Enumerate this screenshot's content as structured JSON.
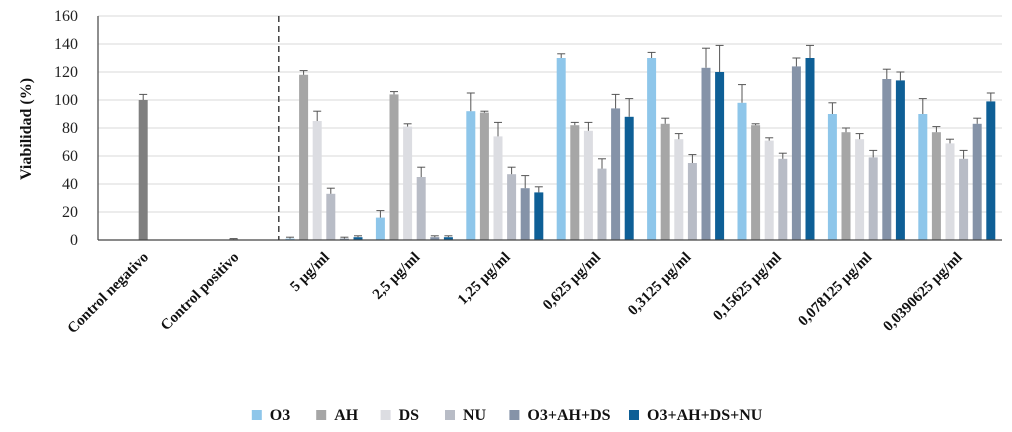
{
  "chart_data": {
    "type": "bar",
    "title": "",
    "xlabel": "",
    "ylabel": "Viabilidad (%)",
    "ylim": [
      0,
      160
    ],
    "yticks": [
      "0",
      "20",
      "40",
      "60",
      "80",
      "100",
      "120",
      "140",
      "160"
    ],
    "grid": true,
    "legend_position": "bottom",
    "categories": [
      "Control negativo",
      "Control positivo",
      "5 µg/ml",
      "2,5 µg/ml",
      "1,25 µg/ml",
      "0,625 µg/ml",
      "0,3125 µg/ml",
      "0,15625 µg/ml",
      "0,078125 µg/ml",
      "0,0390625 µg/ml"
    ],
    "control_values": [
      {
        "category": "Control negativo",
        "value": 100,
        "error": 4
      },
      {
        "category": "Control positivo",
        "value": 0.5,
        "error": 0.5
      }
    ],
    "series": [
      {
        "name": "O3",
        "color": "#8ec6ea",
        "values": [
          null,
          null,
          1,
          16,
          92,
          130,
          130,
          98,
          90,
          90
        ],
        "errors": [
          null,
          null,
          1,
          5,
          13,
          3,
          4,
          13,
          8,
          11
        ]
      },
      {
        "name": "AH",
        "color": "#a6a6a6",
        "values": [
          null,
          null,
          118,
          104,
          91,
          82,
          83,
          82,
          77,
          77
        ],
        "errors": [
          null,
          null,
          3,
          2,
          1,
          2,
          4,
          1,
          3,
          4
        ]
      },
      {
        "name": "DS",
        "color": "#dcdde2",
        "values": [
          null,
          null,
          85,
          81,
          74,
          78,
          72,
          71,
          72,
          69
        ],
        "errors": [
          null,
          null,
          7,
          2,
          10,
          6,
          4,
          2,
          4,
          3
        ]
      },
      {
        "name": "NU",
        "color": "#b8bcc6",
        "values": [
          null,
          null,
          33,
          45,
          47,
          51,
          55,
          58,
          59,
          58
        ],
        "errors": [
          null,
          null,
          4,
          7,
          5,
          7,
          6,
          4,
          5,
          6
        ]
      },
      {
        "name": "O3+AH+DS",
        "color": "#8593a8",
        "values": [
          null,
          null,
          1,
          2,
          37,
          94,
          123,
          124,
          115,
          83
        ],
        "errors": [
          null,
          null,
          1,
          1,
          9,
          10,
          14,
          6,
          7,
          4
        ]
      },
      {
        "name": "O3+AH+DS+NU",
        "color": "#0e5f96",
        "values": [
          null,
          null,
          2,
          2,
          34,
          88,
          120,
          130,
          114,
          99
        ],
        "errors": [
          null,
          null,
          1,
          1,
          4,
          13,
          19,
          9,
          6,
          6
        ]
      }
    ],
    "control_bar_color": "#7f7f7f"
  }
}
